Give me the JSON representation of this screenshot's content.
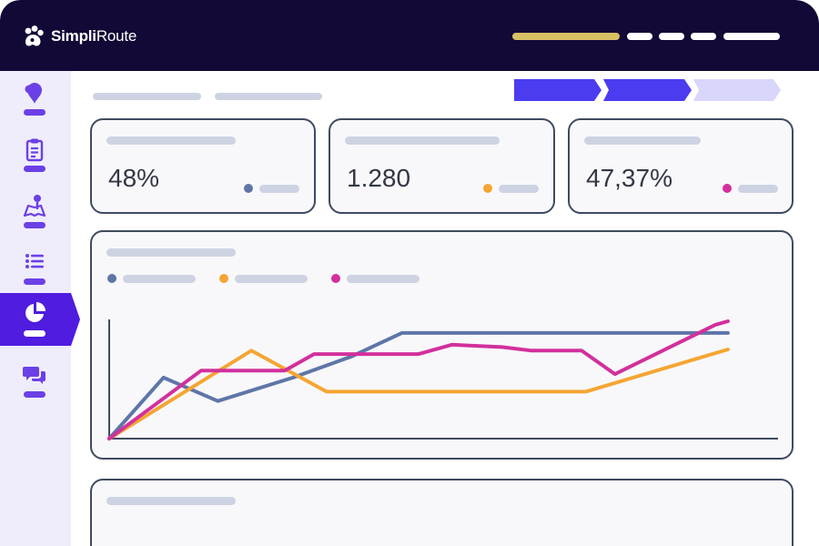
{
  "app": {
    "name_part1": "Simpli",
    "name_part2": "Route",
    "logo_icon": "paw-logo-icon"
  },
  "colors": {
    "topbar": "#120936",
    "sidebar": "#efedfc",
    "accent": "#4f1ce0",
    "series_blue": "#5e75a8",
    "series_orange": "#f5a533",
    "series_magenta": "#d2309c",
    "placeholder": "#cdd3e2",
    "card_border": "#3f4b60"
  },
  "sidebar": {
    "items": [
      {
        "icon": "map-pin-icon",
        "active": false
      },
      {
        "icon": "clipboard-icon",
        "active": false
      },
      {
        "icon": "map-person-icon",
        "active": false
      },
      {
        "icon": "list-icon",
        "active": false
      },
      {
        "icon": "pie-chart-icon",
        "active": true
      },
      {
        "icon": "chat-icon",
        "active": false
      }
    ]
  },
  "stepper": {
    "steps": [
      {
        "state": "done"
      },
      {
        "state": "done"
      },
      {
        "state": "pending"
      }
    ]
  },
  "kpis": [
    {
      "value": "48%",
      "dot_color": "#5e75a8"
    },
    {
      "value": "1.280",
      "dot_color": "#f5a533"
    },
    {
      "value": "47,37%",
      "dot_color": "#d2309c"
    }
  ],
  "chart_data": {
    "type": "line",
    "title": "",
    "xlabel": "",
    "ylabel": "",
    "x": [
      0,
      1,
      2,
      3,
      4,
      5,
      6,
      7,
      8,
      9,
      10,
      11,
      12,
      13,
      14,
      15
    ],
    "xlim": [
      0,
      16
    ],
    "ylim": [
      0,
      100
    ],
    "grid": false,
    "legend": "top-left",
    "series": [
      {
        "color": "#5e75a8",
        "points": [
          [
            0,
            0
          ],
          [
            1.3,
            52
          ],
          [
            2.6,
            32
          ],
          [
            4.4,
            52
          ],
          [
            5.8,
            70
          ],
          [
            7.0,
            90
          ],
          [
            11.5,
            90
          ],
          [
            12.5,
            90
          ],
          [
            14.8,
            90
          ]
        ]
      },
      {
        "color": "#f5a533",
        "points": [
          [
            0,
            0
          ],
          [
            3.4,
            75
          ],
          [
            5.2,
            40
          ],
          [
            6.5,
            40
          ],
          [
            10.0,
            40
          ],
          [
            11.4,
            40
          ],
          [
            14.8,
            76
          ]
        ]
      },
      {
        "color": "#d2309c",
        "points": [
          [
            0,
            0
          ],
          [
            2.2,
            58
          ],
          [
            4.2,
            58
          ],
          [
            4.9,
            72
          ],
          [
            6.6,
            72
          ],
          [
            7.4,
            72
          ],
          [
            8.2,
            80
          ],
          [
            9.4,
            78
          ],
          [
            10.1,
            75
          ],
          [
            11.3,
            75
          ],
          [
            12.1,
            55
          ],
          [
            14.5,
            97
          ],
          [
            14.8,
            100
          ]
        ]
      }
    ]
  }
}
